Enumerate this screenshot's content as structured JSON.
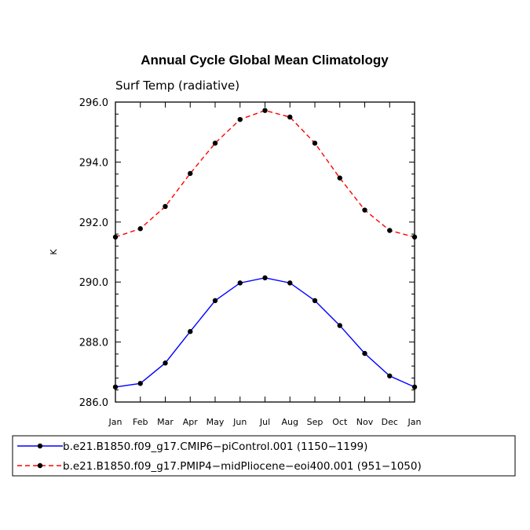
{
  "chart_data": {
    "type": "line",
    "title": "Annual Cycle Global Mean Climatology",
    "subtitle": "Surf Temp (radiative)",
    "xlabel": "",
    "ylabel": "K",
    "ylim": [
      286.0,
      296.0
    ],
    "yticks": [
      "286.0",
      "288.0",
      "290.0",
      "292.0",
      "294.0",
      "296.0"
    ],
    "categories": [
      "Jan",
      "Feb",
      "Mar",
      "Apr",
      "May",
      "Jun",
      "Jul",
      "Aug",
      "Sep",
      "Oct",
      "Nov",
      "Dec",
      "Jan"
    ],
    "series": [
      {
        "name": "b.e21.B1850.f09_g17.CMIP6−piControl.001 (1150−1199)",
        "color": "#0000ff",
        "dash": "solid",
        "values": [
          286.5,
          286.62,
          287.3,
          288.35,
          289.38,
          289.97,
          290.14,
          289.97,
          289.38,
          288.55,
          287.62,
          286.87,
          286.5
        ]
      },
      {
        "name": "b.e21.B1850.f09_g17.PMIP4−midPliocene−eoi400.001 (951−1050)",
        "color": "#ff0000",
        "dash": "dashed",
        "values": [
          291.5,
          291.78,
          292.52,
          293.62,
          294.63,
          295.42,
          295.72,
          295.5,
          294.63,
          293.47,
          292.4,
          291.72,
          291.5
        ]
      }
    ]
  }
}
